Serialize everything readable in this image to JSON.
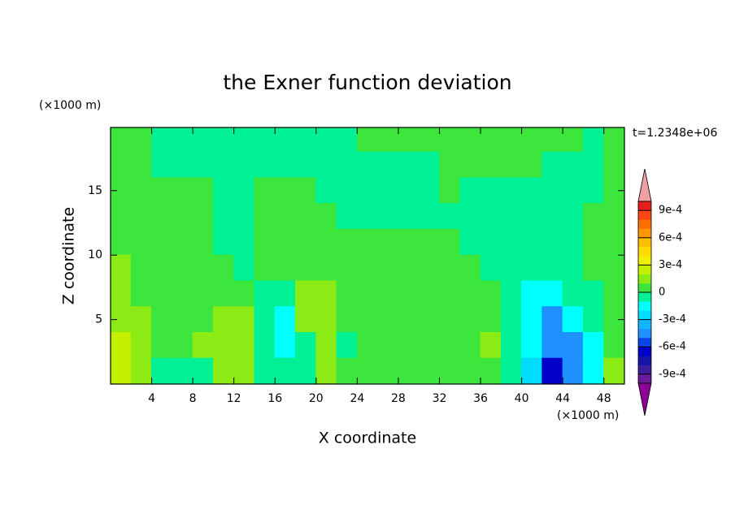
{
  "chart_data": {
    "type": "contour",
    "title": "the Exner function deviation",
    "xlabel": "X coordinate",
    "ylabel": "Z coordinate",
    "xunit": "(×1000 m)",
    "yunit": "(×1000 m)",
    "annotation": "t=1.2348e+06",
    "xlim": [
      0,
      50
    ],
    "ylim": [
      0,
      19.9
    ],
    "xticks": [
      4,
      8,
      12,
      16,
      20,
      24,
      28,
      32,
      36,
      40,
      44,
      48
    ],
    "yticks": [
      5,
      10,
      15
    ],
    "x": [
      1,
      3,
      5,
      7,
      9,
      11,
      13,
      15,
      17,
      19,
      21,
      23,
      25,
      27,
      29,
      31,
      33,
      35,
      37,
      39,
      41,
      43,
      45,
      47,
      49
    ],
    "y": [
      19,
      17,
      15,
      13,
      11,
      9,
      7,
      5,
      3,
      1
    ],
    "z": [
      [
        5e-05,
        5e-05,
        -5e-05,
        -5e-05,
        -5e-05,
        -5e-05,
        -5e-05,
        -5e-05,
        -5e-05,
        -5e-05,
        -5e-05,
        -5e-05,
        5e-05,
        5e-05,
        5e-05,
        5e-05,
        5e-05,
        5e-05,
        5e-05,
        5e-05,
        5e-05,
        5e-05,
        5e-05,
        -5e-05,
        5e-05
      ],
      [
        5e-05,
        5e-05,
        -5e-05,
        -5e-05,
        -5e-05,
        -5e-05,
        -5e-05,
        -5e-05,
        -5e-05,
        -5e-05,
        -5e-05,
        -5e-05,
        -5e-05,
        -5e-05,
        -5e-05,
        -5e-05,
        5e-05,
        5e-05,
        5e-05,
        5e-05,
        5e-05,
        -5e-05,
        -5e-05,
        -5e-05,
        5e-05
      ],
      [
        5e-05,
        5e-05,
        5e-05,
        5e-05,
        5e-05,
        -5e-05,
        -5e-05,
        5e-05,
        5e-05,
        5e-05,
        -5e-05,
        -5e-05,
        -5e-05,
        -5e-05,
        -5e-05,
        -5e-05,
        5e-05,
        -5e-05,
        -5e-05,
        -5e-05,
        -5e-05,
        -5e-05,
        -5e-05,
        -5e-05,
        5e-05
      ],
      [
        5e-05,
        5e-05,
        5e-05,
        5e-05,
        5e-05,
        -5e-05,
        -5e-05,
        5e-05,
        5e-05,
        5e-05,
        5e-05,
        -5e-05,
        -5e-05,
        -5e-05,
        -5e-05,
        -5e-05,
        -5e-05,
        -5e-05,
        -5e-05,
        -5e-05,
        -5e-05,
        -5e-05,
        -5e-05,
        5e-05,
        5e-05
      ],
      [
        5e-05,
        5e-05,
        5e-05,
        5e-05,
        5e-05,
        -5e-05,
        -5e-05,
        5e-05,
        5e-05,
        5e-05,
        5e-05,
        5e-05,
        5e-05,
        5e-05,
        5e-05,
        5e-05,
        5e-05,
        -5e-05,
        -5e-05,
        -5e-05,
        -5e-05,
        -5e-05,
        -5e-05,
        5e-05,
        5e-05
      ],
      [
        0.00015,
        5e-05,
        5e-05,
        5e-05,
        5e-05,
        5e-05,
        -5e-05,
        5e-05,
        5e-05,
        5e-05,
        5e-05,
        5e-05,
        5e-05,
        5e-05,
        5e-05,
        5e-05,
        5e-05,
        5e-05,
        -5e-05,
        -5e-05,
        -5e-05,
        -5e-05,
        -5e-05,
        5e-05,
        5e-05
      ],
      [
        0.00015,
        5e-05,
        5e-05,
        5e-05,
        5e-05,
        5e-05,
        5e-05,
        -5e-05,
        -5e-05,
        0.00015,
        0.00015,
        5e-05,
        5e-05,
        5e-05,
        5e-05,
        5e-05,
        5e-05,
        5e-05,
        5e-05,
        -5e-05,
        -0.00015,
        -0.00015,
        -5e-05,
        -5e-05,
        5e-05
      ],
      [
        0.00015,
        0.00015,
        5e-05,
        5e-05,
        5e-05,
        0.00015,
        0.00015,
        -5e-05,
        -0.00015,
        0.00015,
        0.00015,
        5e-05,
        5e-05,
        5e-05,
        5e-05,
        5e-05,
        5e-05,
        5e-05,
        5e-05,
        -5e-05,
        -0.00015,
        -0.00045,
        -0.00015,
        -5e-05,
        5e-05
      ],
      [
        0.00025,
        0.00015,
        5e-05,
        5e-05,
        0.00015,
        0.00015,
        0.00015,
        -5e-05,
        -0.00015,
        -5e-05,
        0.00015,
        -5e-05,
        5e-05,
        5e-05,
        5e-05,
        5e-05,
        5e-05,
        5e-05,
        0.00015,
        -5e-05,
        -0.00015,
        -0.00045,
        -0.00045,
        -0.00015,
        5e-05
      ],
      [
        0.00025,
        0.00015,
        -5e-05,
        -5e-05,
        -5e-05,
        0.00015,
        0.00015,
        -5e-05,
        -5e-05,
        -5e-05,
        0.00015,
        5e-05,
        5e-05,
        5e-05,
        5e-05,
        5e-05,
        5e-05,
        5e-05,
        5e-05,
        -5e-05,
        -0.00025,
        -0.00065,
        -0.00045,
        -0.00015,
        0.00015
      ]
    ],
    "clim": [
      -0.001,
      0.001
    ],
    "colors": [
      "#6a1a9a",
      "#3c1e9c",
      "#1414aa",
      "#0000c8",
      "#0a46e6",
      "#1e90ff",
      "#14b4ff",
      "#00dcff",
      "#00ffff",
      "#00f096",
      "#3ce63c",
      "#8ceb14",
      "#c3f000",
      "#f0f000",
      "#ffdc00",
      "#ffbe00",
      "#ff9600",
      "#ff6e00",
      "#ff4614",
      "#e61e1e"
    ],
    "under_color": "#8c0096",
    "over_color": "#f0a0a0",
    "cticks": [
      {
        "value": 0.0009,
        "label": "9e-4"
      },
      {
        "value": 0.0006,
        "label": "6e-4"
      },
      {
        "value": 0.0003,
        "label": "3e-4"
      },
      0,
      {
        "value": -0.0003,
        "label": "-3e-4"
      },
      {
        "value": -0.0006,
        "label": "-6e-4"
      },
      {
        "value": -0.0009,
        "label": "-9e-4"
      }
    ]
  }
}
